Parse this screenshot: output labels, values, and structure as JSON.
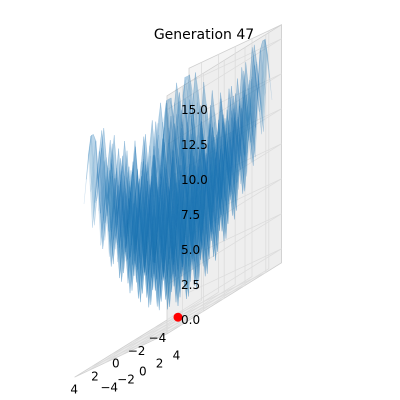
{
  "chart_data": {
    "type": "surface",
    "title": "Generation 47",
    "function": "Rastrigin",
    "x": {
      "label": "",
      "range": [
        -5,
        5
      ],
      "ticks": [
        "−4",
        "−2",
        "0",
        "2",
        "4"
      ],
      "tick_values": [
        -4,
        -2,
        0,
        2,
        4
      ]
    },
    "y": {
      "label": "",
      "range": [
        -5,
        5
      ],
      "ticks": [
        "−4",
        "−2",
        "0",
        "2",
        "4"
      ],
      "tick_values": [
        -4,
        -2,
        0,
        2,
        4
      ]
    },
    "z": {
      "label": "",
      "range": [
        0,
        15
      ],
      "ticks": [
        "0.0",
        "2.5",
        "5.0",
        "7.5",
        "10.0",
        "12.5",
        "15.0"
      ],
      "tick_values": [
        0,
        2.5,
        5,
        7.5,
        10,
        12.5,
        15
      ]
    },
    "grid": true,
    "points": [
      {
        "x": 0,
        "y": 0,
        "z": 0
      }
    ],
    "colors": {
      "surface": "#1f77b4",
      "point": "#ff0000",
      "pane": "#f2f2f2",
      "grid": "#dcdcdc"
    }
  }
}
